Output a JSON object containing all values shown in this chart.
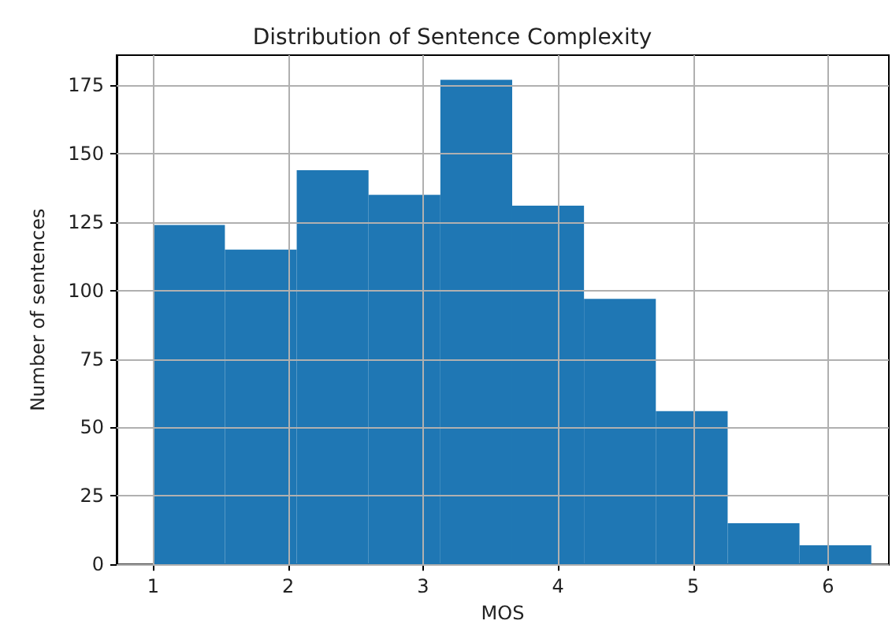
{
  "chart_data": {
    "type": "histogram",
    "title": "Distribution of Sentence Complexity",
    "xlabel": "MOS",
    "ylabel": "Number of sentences",
    "bins": [
      1,
      1.532,
      2.064,
      2.596,
      3.128,
      3.66,
      4.192,
      4.724,
      5.256,
      5.788,
      6.32
    ],
    "values": [
      124,
      115,
      144,
      135,
      177,
      131,
      97,
      56,
      15,
      7
    ],
    "color": "#1f77b4",
    "xlim": [
      0.73,
      6.45
    ],
    "ylim": [
      0,
      186
    ],
    "xticks": [
      1,
      2,
      3,
      4,
      5,
      6
    ],
    "yticks": [
      0,
      25,
      50,
      75,
      100,
      125,
      150,
      175
    ],
    "grid": true
  }
}
